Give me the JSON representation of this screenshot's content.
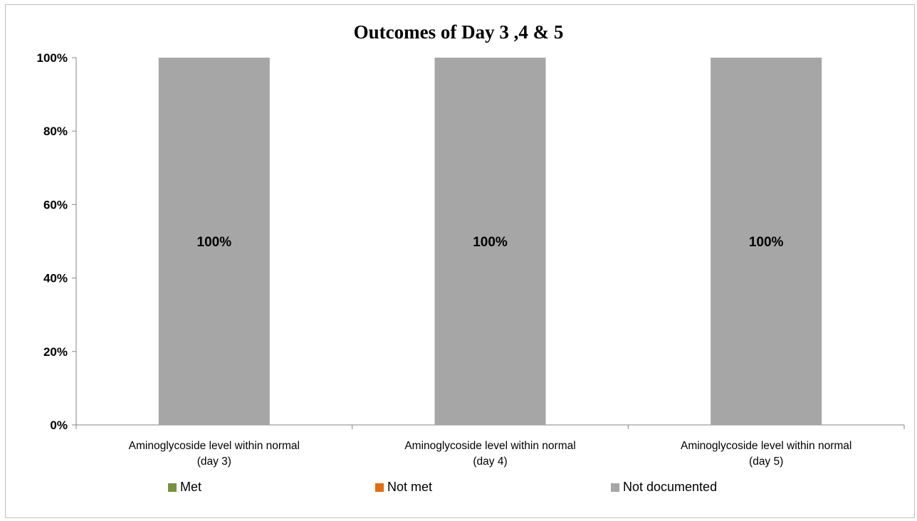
{
  "chart_data": {
    "type": "bar",
    "stacked": true,
    "title": "Outcomes of Day 3 ,4 & 5",
    "categories": [
      [
        "Aminoglycoside level within normal",
        "(day 3)"
      ],
      [
        "Aminoglycoside level within normal",
        "(day 4)"
      ],
      [
        "Aminoglycoside level within normal",
        "(day 5)"
      ]
    ],
    "series": [
      {
        "name": "Met",
        "color": "#77933c",
        "values": [
          0,
          0,
          0
        ]
      },
      {
        "name": "Not met",
        "color": "#e46c0a",
        "values": [
          0,
          0,
          0
        ]
      },
      {
        "name": "Not documented",
        "color": "#a6a6a6",
        "values": [
          100,
          100,
          100
        ]
      }
    ],
    "data_labels": [
      "100%",
      "100%",
      "100%"
    ],
    "y_ticks": [
      "0%",
      "20%",
      "40%",
      "60%",
      "80%",
      "100%"
    ],
    "ylim": [
      0,
      100
    ],
    "grid": false,
    "legend_position": "bottom"
  }
}
